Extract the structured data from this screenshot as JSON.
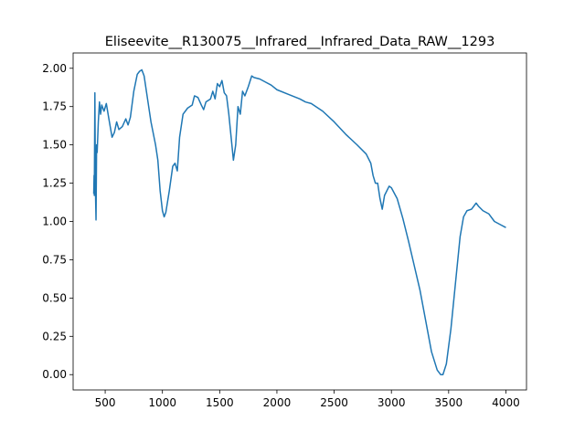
{
  "chart_data": {
    "type": "line",
    "title": "Eliseevite__R130075__Infrared__Infrared_Data_RAW__1293",
    "color": "#1f77b4",
    "x": [
      400,
      403,
      405,
      410,
      415,
      420,
      425,
      430,
      440,
      450,
      460,
      470,
      490,
      510,
      530,
      560,
      580,
      600,
      620,
      650,
      680,
      700,
      720,
      750,
      780,
      800,
      820,
      840,
      870,
      900,
      940,
      960,
      980,
      1000,
      1015,
      1030,
      1060,
      1090,
      1110,
      1130,
      1150,
      1180,
      1220,
      1260,
      1280,
      1310,
      1340,
      1360,
      1380,
      1420,
      1440,
      1460,
      1480,
      1500,
      1520,
      1540,
      1560,
      1580,
      1600,
      1620,
      1640,
      1660,
      1680,
      1700,
      1720,
      1750,
      1780,
      1800,
      1850,
      1900,
      1950,
      2000,
      2100,
      2200,
      2250,
      2300,
      2400,
      2500,
      2600,
      2700,
      2780,
      2820,
      2840,
      2860,
      2880,
      2900,
      2920,
      2940,
      2980,
      3000,
      3050,
      3100,
      3150,
      3200,
      3250,
      3300,
      3350,
      3400,
      3430,
      3450,
      3480,
      3520,
      3560,
      3600,
      3630,
      3660,
      3700,
      3740,
      3760,
      3800,
      3850,
      3900,
      3950,
      4000
    ],
    "values": [
      1.18,
      1.3,
      1.17,
      1.84,
      1.2,
      1.01,
      1.5,
      1.45,
      1.65,
      1.78,
      1.7,
      1.76,
      1.72,
      1.77,
      1.68,
      1.55,
      1.58,
      1.65,
      1.6,
      1.62,
      1.67,
      1.63,
      1.68,
      1.85,
      1.96,
      1.98,
      1.99,
      1.95,
      1.8,
      1.65,
      1.5,
      1.4,
      1.2,
      1.07,
      1.03,
      1.06,
      1.2,
      1.36,
      1.38,
      1.33,
      1.55,
      1.7,
      1.74,
      1.76,
      1.82,
      1.81,
      1.76,
      1.73,
      1.78,
      1.8,
      1.85,
      1.8,
      1.9,
      1.88,
      1.92,
      1.84,
      1.82,
      1.7,
      1.55,
      1.4,
      1.5,
      1.75,
      1.7,
      1.85,
      1.82,
      1.88,
      1.95,
      1.94,
      1.93,
      1.91,
      1.89,
      1.86,
      1.83,
      1.8,
      1.78,
      1.77,
      1.72,
      1.65,
      1.57,
      1.5,
      1.44,
      1.38,
      1.3,
      1.25,
      1.25,
      1.15,
      1.08,
      1.17,
      1.23,
      1.22,
      1.15,
      1.02,
      0.87,
      0.71,
      0.55,
      0.35,
      0.15,
      0.03,
      0.0,
      0.0,
      0.07,
      0.3,
      0.6,
      0.9,
      1.03,
      1.07,
      1.08,
      1.12,
      1.1,
      1.07,
      1.05,
      1.0,
      0.98,
      0.96
    ],
    "xlim": [
      220,
      4180
    ],
    "ylim": [
      -0.1,
      2.1
    ],
    "xticks": [
      500,
      1000,
      1500,
      2000,
      2500,
      3000,
      3500,
      4000
    ],
    "yticks": [
      {
        "value": 0,
        "label": "0.00"
      },
      {
        "value": 0.25,
        "label": "0.25"
      },
      {
        "value": 0.5,
        "label": "0.50"
      },
      {
        "value": 0.75,
        "label": "0.75"
      },
      {
        "value": 1,
        "label": "1.00"
      },
      {
        "value": 1.25,
        "label": "1.25"
      },
      {
        "value": 1.5,
        "label": "1.50"
      },
      {
        "value": 1.75,
        "label": "1.75"
      },
      {
        "value": 2,
        "label": "2.00"
      }
    ]
  }
}
